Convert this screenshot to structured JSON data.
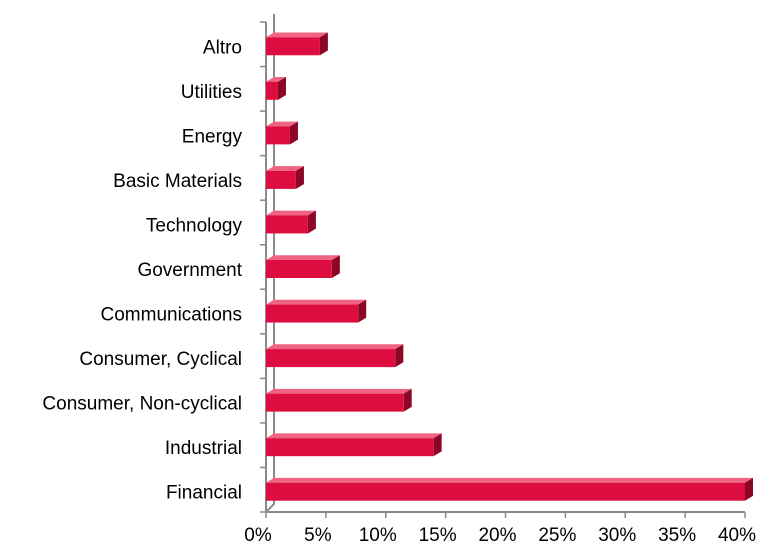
{
  "chart_data": {
    "type": "bar",
    "orientation": "horizontal",
    "style": "3d",
    "categories": [
      "Altro",
      "Utilities",
      "Energy",
      "Basic Materials",
      "Technology",
      "Government",
      "Communications",
      "Consumer, Cyclical",
      "Consumer, Non-cyclical",
      "Industrial",
      "Financial"
    ],
    "values": [
      4.5,
      1.0,
      2.0,
      2.5,
      3.5,
      5.5,
      7.7,
      10.8,
      11.5,
      14.0,
      40.0
    ],
    "xlim": [
      0,
      40
    ],
    "x_ticks": [
      "0%",
      "5%",
      "10%",
      "15%",
      "20%",
      "25%",
      "30%",
      "35%",
      "40%"
    ],
    "value_unit": "%",
    "grid": false,
    "legend": "none",
    "colors": {
      "bar_front": "#dd0e3f",
      "bar_top": "#ef6482",
      "bar_side": "#8c0626",
      "axis": "#8a8a8a"
    }
  }
}
